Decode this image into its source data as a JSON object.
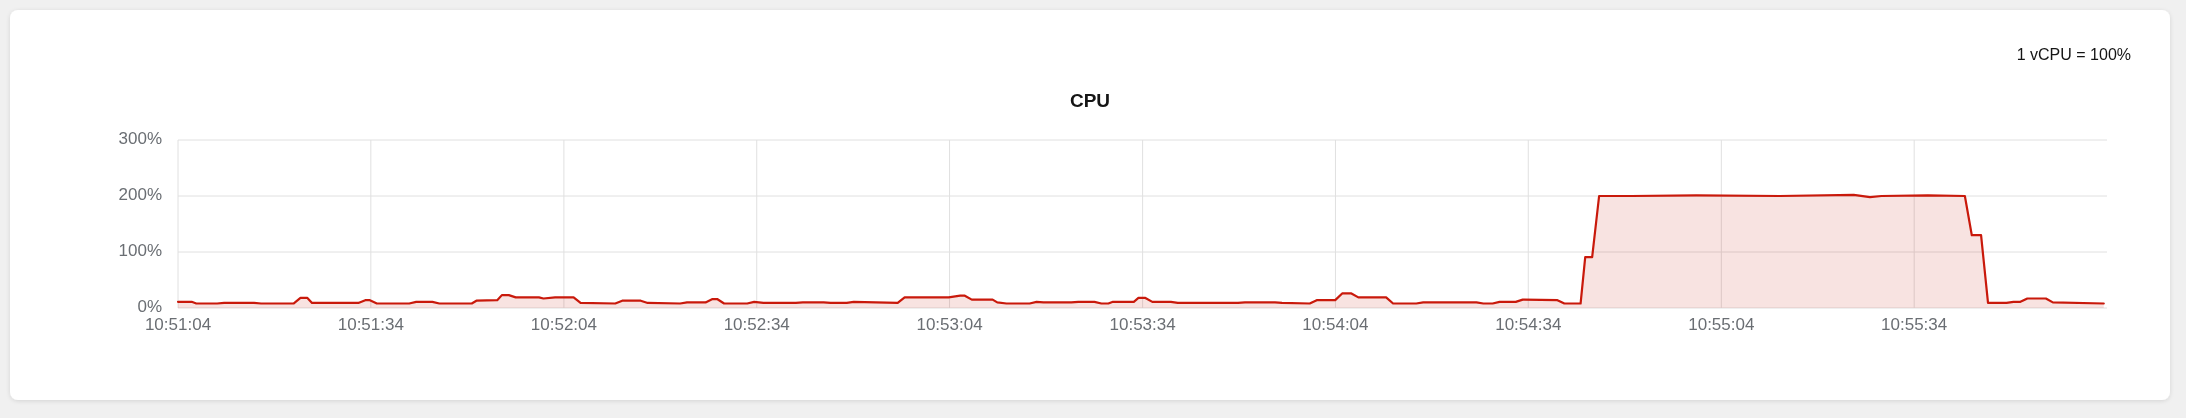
{
  "chart_data": {
    "type": "area",
    "title": "CPU",
    "annotations": [
      "1 vCPU = 100%"
    ],
    "x": [
      10.85111,
      10.8517,
      10.8519,
      10.8528,
      10.8531,
      10.8544,
      10.8547,
      10.8561,
      10.8564,
      10.8567,
      10.8569,
      10.8589,
      10.8592,
      10.8594,
      10.8597,
      10.8611,
      10.8614,
      10.8621,
      10.8624,
      10.8638,
      10.864,
      10.8649,
      10.8651,
      10.8654,
      10.8657,
      10.8667,
      10.8669,
      10.8674,
      10.8682,
      10.8685,
      10.87,
      10.8703,
      10.8711,
      10.8714,
      10.8728,
      10.8731,
      10.8739,
      10.8742,
      10.8744,
      10.8747,
      10.8757,
      10.876,
      10.8764,
      10.8778,
      10.8781,
      10.879,
      10.8793,
      10.88,
      10.8803,
      10.8822,
      10.8825,
      10.8844,
      10.8849,
      10.8851,
      10.8854,
      10.8863,
      10.8865,
      10.8869,
      10.8879,
      10.8882,
      10.8885,
      10.8897,
      10.89,
      10.8907,
      10.891,
      10.8913,
      10.8915,
      10.8924,
      10.8926,
      10.8929,
      10.8932,
      10.894,
      10.8943,
      10.8969,
      10.8972,
      10.8985,
      10.8988,
      10.9,
      10.9003,
      10.9011,
      10.9014,
      10.9018,
      10.9021,
      10.9033,
      10.9036,
      10.9046,
      10.9049,
      10.9072,
      10.9075,
      10.9079,
      10.9082,
      10.9089,
      10.9092,
      10.9107,
      10.911,
      10.9117,
      10.9119,
      10.9122,
      10.9125,
      10.9139,
      10.9167,
      10.9203,
      10.9235,
      10.9242,
      10.9247,
      10.9267,
      10.9283,
      10.9286,
      10.929,
      10.9293,
      10.9301,
      10.9304,
      10.9307,
      10.931,
      10.9318,
      10.9321,
      10.9343
    ],
    "series": [
      {
        "color": "#c9190b",
        "values": [
          11,
          11,
          8,
          8,
          9,
          9,
          8,
          8,
          18,
          18,
          9,
          9,
          14,
          14,
          8,
          8,
          11,
          11,
          8,
          8,
          13,
          14,
          23,
          23,
          19,
          19,
          17,
          19,
          19,
          9,
          8,
          13,
          13,
          9,
          8,
          10,
          10,
          16,
          16,
          8,
          8,
          11,
          9,
          9,
          10,
          10,
          9,
          9,
          11,
          9,
          19,
          19,
          22,
          22,
          15,
          15,
          10,
          8,
          8,
          11,
          10,
          10,
          11,
          11,
          8,
          8,
          11,
          11,
          18,
          18,
          11,
          11,
          9,
          9,
          10,
          10,
          9,
          8,
          14,
          14,
          26,
          26,
          19,
          19,
          8,
          8,
          10,
          10,
          8,
          8,
          11,
          11,
          15,
          14,
          8,
          8,
          91,
          91,
          200,
          200,
          201,
          200,
          202,
          198,
          200,
          201,
          200,
          130,
          130,
          9,
          9,
          11,
          11,
          17,
          17,
          10,
          8
        ]
      }
    ],
    "xlim": [
      10.85111,
      10.93444
    ],
    "ylim": [
      0,
      300
    ],
    "xticks": [
      {
        "value": 10.85111,
        "label": "10:51:04"
      },
      {
        "value": 10.85944,
        "label": "10:51:34"
      },
      {
        "value": 10.86778,
        "label": "10:52:04"
      },
      {
        "value": 10.87611,
        "label": "10:52:34"
      },
      {
        "value": 10.88444,
        "label": "10:53:04"
      },
      {
        "value": 10.89278,
        "label": "10:53:34"
      },
      {
        "value": 10.90111,
        "label": "10:54:04"
      },
      {
        "value": 10.90944,
        "label": "10:54:34"
      },
      {
        "value": 10.91778,
        "label": "10:55:04"
      },
      {
        "value": 10.92611,
        "label": "10:55:34"
      }
    ],
    "yticks": [
      {
        "value": 0,
        "label": "0%"
      },
      {
        "value": 100,
        "label": "100%"
      },
      {
        "value": 200,
        "label": "200%"
      },
      {
        "value": 300,
        "label": "300%"
      }
    ],
    "grid": true
  }
}
